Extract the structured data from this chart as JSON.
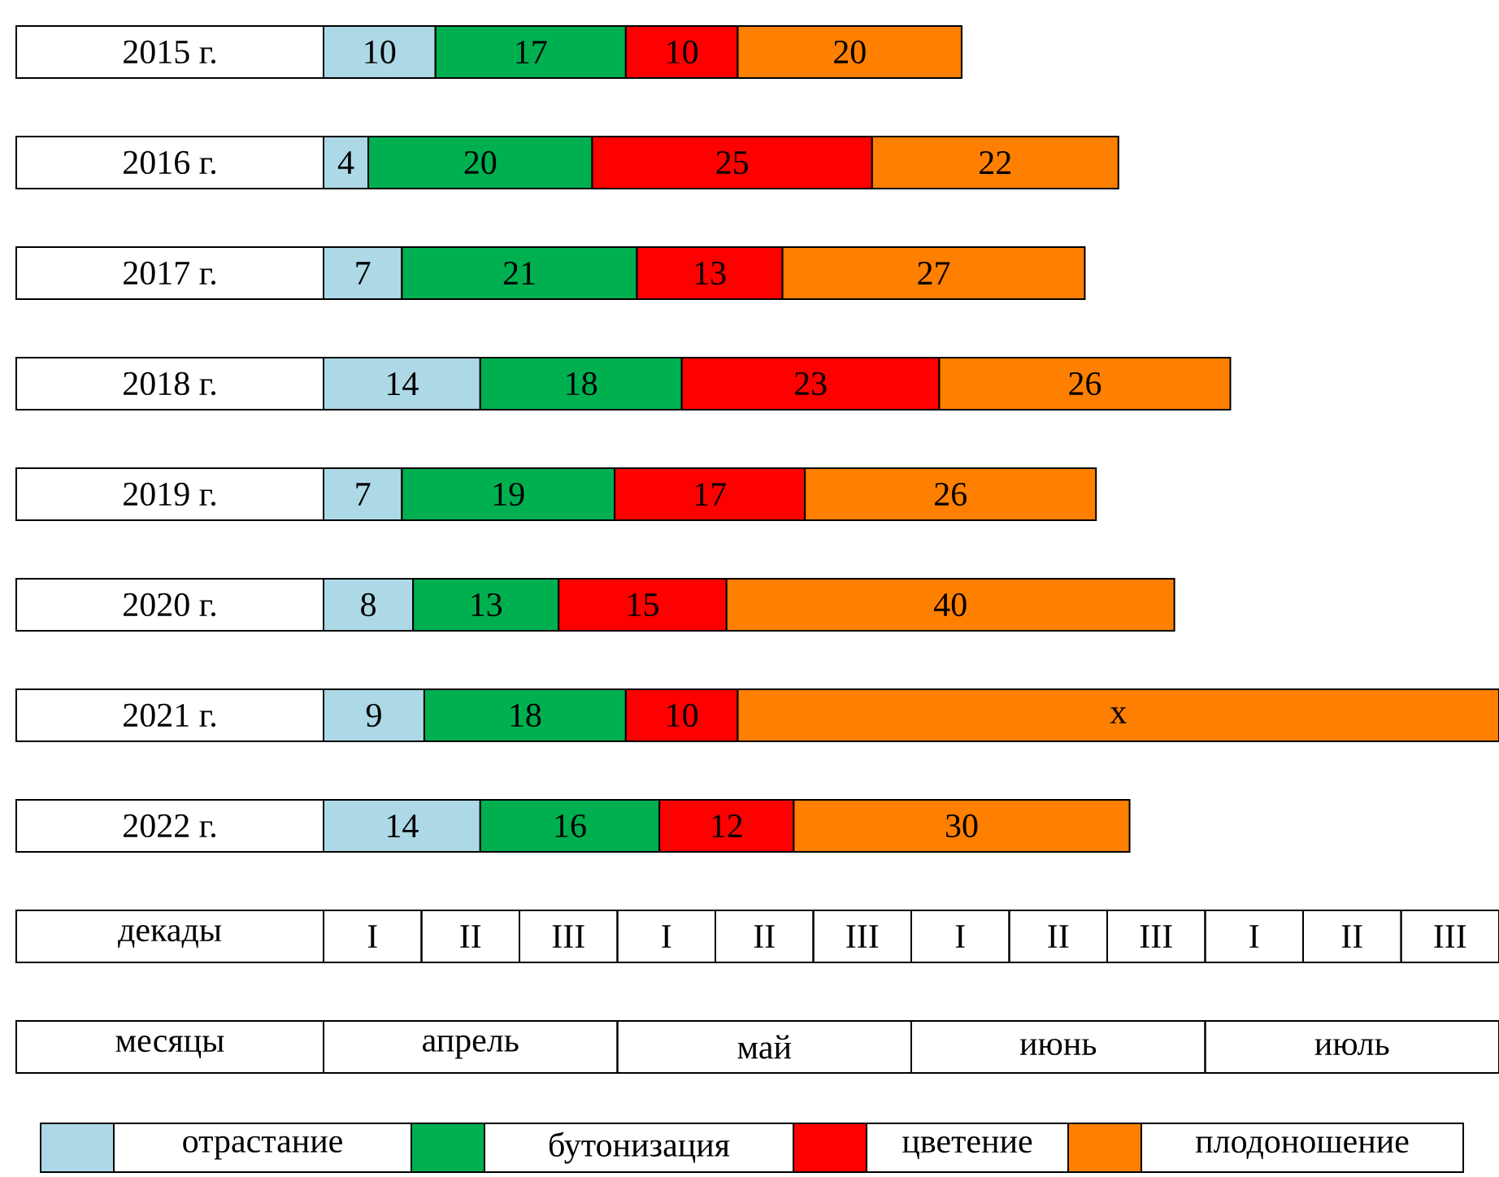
{
  "chart_data": {
    "type": "bar",
    "orientation": "horizontal",
    "stacked": true,
    "categories": [
      "2015 г.",
      "2016 г.",
      "2017 г.",
      "2018 г.",
      "2019 г.",
      "2020 г.",
      "2021 г.",
      "2022 г."
    ],
    "series": [
      {
        "name": "отрастание",
        "color": "#add8e6",
        "values": [
          10,
          4,
          7,
          14,
          7,
          8,
          9,
          14
        ],
        "value_labels": [
          "10",
          "4",
          "7",
          "14",
          "7",
          "8",
          "9",
          "14"
        ]
      },
      {
        "name": "бутонизация",
        "color": "#00b050",
        "values": [
          17,
          20,
          21,
          18,
          19,
          13,
          18,
          16
        ],
        "value_labels": [
          "17",
          "20",
          "21",
          "18",
          "19",
          "13",
          "18",
          "16"
        ]
      },
      {
        "name": "цветение",
        "color": "#ff0000",
        "values": [
          10,
          25,
          13,
          23,
          17,
          15,
          10,
          12
        ],
        "value_labels": [
          "10",
          "25",
          "13",
          "23",
          "17",
          "15",
          "10",
          "12"
        ]
      },
      {
        "name": "плодоношение",
        "color": "#ff7f00",
        "values": [
          20,
          22,
          27,
          26,
          26,
          40,
          68,
          30
        ],
        "value_labels": [
          "20",
          "22",
          "27",
          "26",
          "26",
          "40",
          "x",
          "30"
        ]
      }
    ],
    "annotations": [
      "I",
      "II",
      "III",
      "I",
      "II",
      "III",
      "I",
      "II",
      "III",
      "I",
      "II",
      "III",
      "апрель",
      "май",
      "июнь",
      "июль"
    ],
    "xlabel": "декады",
    "x2label": "месяцы",
    "legend": "bottom"
  }
}
